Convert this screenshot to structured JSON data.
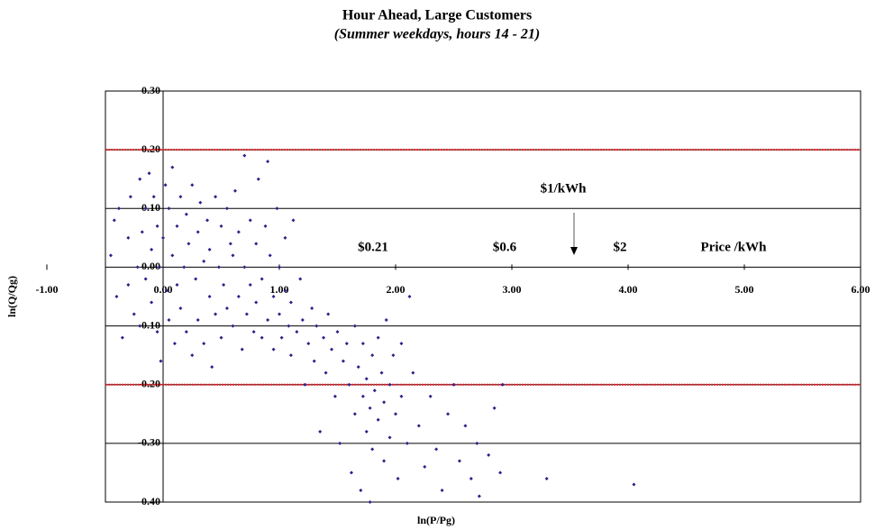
{
  "chart_data": {
    "type": "scatter",
    "title": "Hour Ahead, Large Customers",
    "subtitle": "(Summer weekdays, hours 14 - 21)",
    "x_label": "ln(P/Pg)",
    "y_label": "ln(Q/Qg)",
    "annotations": [
      "$1/kWh",
      "$0.21",
      "$0.6",
      "$2",
      "Price /kWh"
    ],
    "color": "#2e1f8a",
    "grid": true,
    "hlines": [
      0.2,
      -0.2
    ],
    "hline_color": "#e0202a",
    "xlim": [
      -1,
      6
    ],
    "ylim": [
      -0.4,
      0.3
    ],
    "xticks": [
      {
        "value": -1,
        "label": "-1.00"
      },
      {
        "value": 0,
        "label": "0.00"
      },
      {
        "value": 1,
        "label": "1.00"
      },
      {
        "value": 2,
        "label": "2.00"
      },
      {
        "value": 3,
        "label": "3.00"
      },
      {
        "value": 4,
        "label": "4.00"
      },
      {
        "value": 5,
        "label": "5.00"
      },
      {
        "value": 6,
        "label": "6.00"
      }
    ],
    "yticks": [
      {
        "value": 0.3,
        "label": "0.30"
      },
      {
        "value": 0.2,
        "label": "0.20"
      },
      {
        "value": 0.1,
        "label": "0.10"
      },
      {
        "value": 0,
        "label": "0.00"
      },
      {
        "value": -0.1,
        "label": "-0.10"
      },
      {
        "value": -0.2,
        "label": "-0.20"
      },
      {
        "value": -0.3,
        "label": "-0.30"
      },
      {
        "value": -0.4,
        "label": "-0.40"
      }
    ],
    "x": [
      -0.45,
      -0.4,
      -0.42,
      -0.35,
      -0.38,
      -0.3,
      -0.3,
      -0.28,
      -0.25,
      -0.22,
      -0.2,
      -0.2,
      -0.18,
      -0.15,
      -0.15,
      -0.12,
      -0.1,
      -0.1,
      -0.08,
      -0.05,
      -0.05,
      -0.03,
      -0.02,
      0.0,
      0.02,
      0.03,
      0.05,
      0.05,
      0.08,
      0.08,
      0.1,
      0.12,
      0.12,
      0.15,
      0.15,
      0.18,
      0.2,
      0.2,
      0.22,
      0.25,
      0.25,
      0.28,
      0.3,
      0.3,
      0.32,
      0.35,
      0.35,
      0.38,
      0.4,
      0.4,
      0.42,
      0.45,
      0.45,
      0.48,
      0.5,
      0.5,
      0.52,
      0.55,
      0.55,
      0.58,
      0.6,
      0.6,
      0.62,
      0.65,
      0.65,
      0.68,
      0.7,
      0.7,
      0.72,
      0.75,
      0.75,
      0.78,
      0.8,
      0.8,
      0.82,
      0.85,
      0.85,
      0.88,
      0.9,
      0.9,
      0.92,
      0.95,
      0.95,
      0.98,
      1.0,
      1.0,
      1.02,
      1.05,
      1.05,
      1.08,
      1.1,
      1.1,
      1.12,
      1.15,
      1.18,
      1.2,
      1.22,
      1.25,
      1.28,
      1.3,
      1.32,
      1.35,
      1.38,
      1.4,
      1.42,
      1.45,
      1.48,
      1.5,
      1.52,
      1.55,
      1.58,
      1.6,
      1.62,
      1.65,
      1.65,
      1.68,
      1.7,
      1.72,
      1.72,
      1.75,
      1.75,
      1.78,
      1.78,
      1.8,
      1.8,
      1.82,
      1.85,
      1.85,
      1.88,
      1.9,
      1.9,
      1.92,
      1.95,
      1.95,
      1.98,
      2.0,
      2.02,
      2.05,
      2.05,
      2.1,
      2.12,
      2.15,
      2.2,
      2.25,
      2.3,
      2.35,
      2.4,
      2.45,
      2.5,
      2.55,
      2.6,
      2.65,
      2.7,
      2.72,
      2.8,
      2.85,
      2.9,
      2.92,
      3.3,
      4.05
    ],
    "y": [
      0.02,
      -0.05,
      0.08,
      -0.12,
      0.1,
      0.05,
      -0.03,
      0.12,
      -0.08,
      0.0,
      0.15,
      -0.1,
      0.06,
      -0.02,
      0.1,
      0.16,
      -0.06,
      0.03,
      0.12,
      -0.11,
      0.07,
      0.0,
      -0.16,
      0.05,
      0.14,
      -0.04,
      0.1,
      -0.09,
      0.17,
      0.02,
      -0.13,
      0.07,
      -0.03,
      0.12,
      -0.07,
      0.0,
      -0.11,
      0.09,
      0.04,
      -0.15,
      0.14,
      -0.02,
      0.06,
      -0.09,
      0.11,
      0.01,
      -0.13,
      0.08,
      -0.05,
      0.03,
      -0.17,
      0.12,
      -0.08,
      0.0,
      0.07,
      -0.12,
      -0.03,
      0.1,
      -0.07,
      0.04,
      -0.1,
      0.02,
      0.13,
      -0.05,
      0.06,
      -0.14,
      0.19,
      0.0,
      -0.08,
      0.08,
      -0.03,
      -0.11,
      0.04,
      -0.06,
      0.15,
      -0.02,
      -0.12,
      0.07,
      -0.09,
      0.18,
      0.02,
      -0.05,
      -0.14,
      0.1,
      -0.08,
      0.0,
      -0.12,
      0.05,
      -0.04,
      -0.1,
      -0.06,
      -0.15,
      0.08,
      -0.11,
      -0.02,
      -0.09,
      -0.2,
      -0.13,
      -0.07,
      -0.16,
      -0.1,
      -0.28,
      -0.12,
      -0.18,
      -0.08,
      -0.14,
      -0.22,
      -0.11,
      -0.3,
      -0.16,
      -0.13,
      -0.2,
      -0.35,
      -0.1,
      -0.25,
      -0.17,
      -0.38,
      -0.22,
      -0.13,
      -0.28,
      -0.19,
      -0.24,
      -0.4,
      -0.15,
      -0.31,
      -0.21,
      -0.26,
      -0.12,
      -0.18,
      -0.33,
      -0.23,
      -0.09,
      -0.2,
      -0.29,
      -0.15,
      -0.25,
      -0.36,
      -0.13,
      -0.22,
      -0.3,
      -0.05,
      -0.18,
      -0.27,
      -0.34,
      -0.22,
      -0.31,
      -0.38,
      -0.25,
      -0.2,
      -0.33,
      -0.27,
      -0.36,
      -0.3,
      -0.39,
      -0.32,
      -0.24,
      -0.35,
      -0.2,
      -0.36,
      -0.37
    ]
  }
}
